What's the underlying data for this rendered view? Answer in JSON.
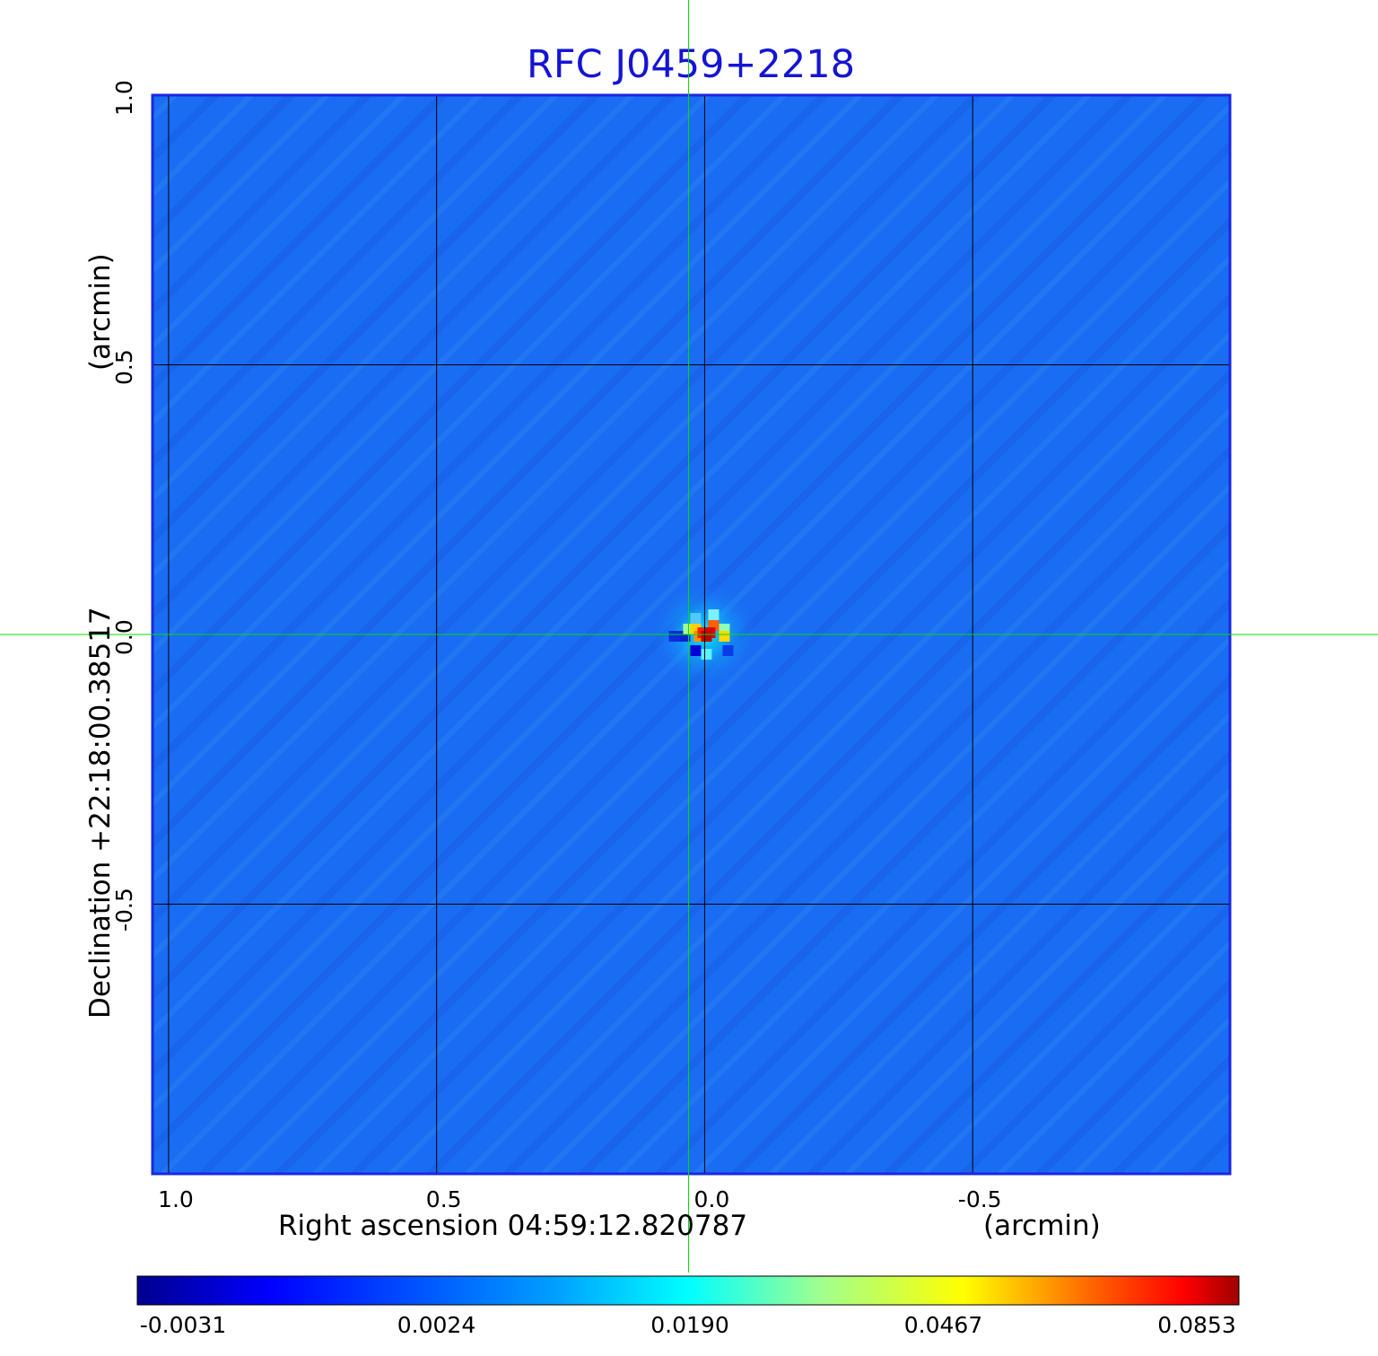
{
  "chart_data": {
    "type": "heatmap",
    "title": "RFC J0459+2218",
    "xlabel_prefix": "Right ascension  04:59:12.820787",
    "xlabel_unit": "(arcmin)",
    "ylabel_prefix": "Declination  +22:18:00.38517",
    "ylabel_unit": "(arcmin)",
    "x_ticks": [
      "1.0",
      "0.5",
      "0.0",
      "-0.5"
    ],
    "y_ticks": [
      "1.0",
      "0.5",
      "0.0",
      "-0.5"
    ],
    "xlim": [
      1.03,
      -0.98
    ],
    "ylim": [
      -1.0,
      1.0
    ],
    "grid": true,
    "colormap": "jet",
    "colorbar_ticks": [
      "-0.0031",
      "0.0024",
      "0.0190",
      "0.0467",
      "0.0853"
    ],
    "colorbar_range": [
      -0.0031,
      0.0853
    ],
    "background_level": 0.0024,
    "peak": {
      "x": 0.0,
      "y": 0.0,
      "value": 0.0853
    },
    "crosshair": {
      "x": 0.03,
      "y": 0.0,
      "color": "#00e000"
    },
    "colors": {
      "title": "#1414d4",
      "frame": "#1a28e0",
      "background_map": "#1a6cf2"
    }
  }
}
